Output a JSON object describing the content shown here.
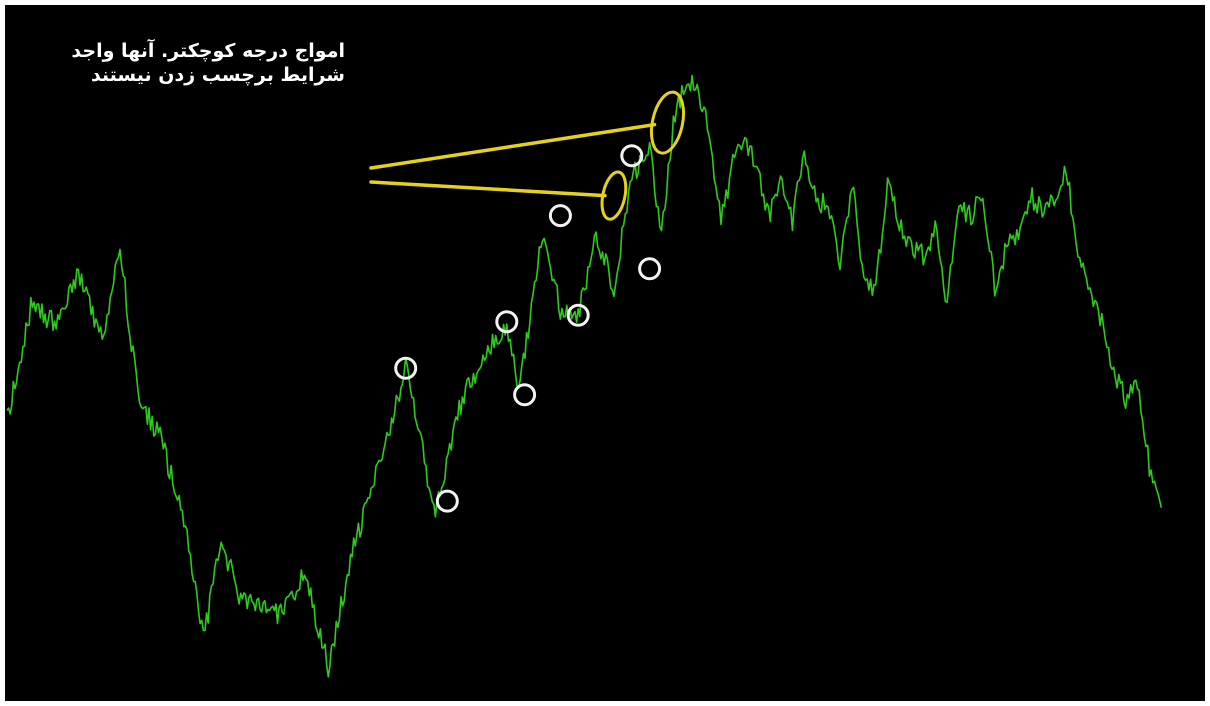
{
  "annotation": {
    "line1": "امواج درجه کوچکتر. آنها واجد",
    "line2": "شرایط برچسب زدن نیستند"
  },
  "colors": {
    "background": "#000000",
    "price_line": "#2ecc1a",
    "callout": "#e6d21c",
    "marker": "#f2f2f2"
  },
  "chart_data": {
    "type": "line",
    "title": "",
    "xlabel": "",
    "ylabel": "",
    "grid": false,
    "legend": "none",
    "xlim": [
      0,
      100
    ],
    "ylim": [
      0,
      100
    ],
    "series": [
      {
        "values": [
          [
            0,
            40
          ],
          [
            2,
            57
          ],
          [
            4,
            55
          ],
          [
            6,
            62
          ],
          [
            8,
            52
          ],
          [
            9.5,
            66
          ],
          [
            11,
            44
          ],
          [
            13,
            37
          ],
          [
            15,
            24
          ],
          [
            16.5,
            7
          ],
          [
            18,
            22
          ],
          [
            19.5,
            14
          ],
          [
            21,
            12
          ],
          [
            23,
            11
          ],
          [
            25,
            17
          ],
          [
            27,
            3
          ],
          [
            29,
            20
          ],
          [
            31,
            32
          ],
          [
            33.5,
            48
          ],
          [
            36,
            26
          ],
          [
            38,
            42
          ],
          [
            40,
            50
          ],
          [
            42,
            55
          ],
          [
            43,
            45
          ],
          [
            45,
            68
          ],
          [
            46.5,
            57
          ],
          [
            48,
            56
          ],
          [
            49.5,
            68
          ],
          [
            51,
            60
          ],
          [
            52.5,
            77
          ],
          [
            54,
            81
          ],
          [
            55,
            68
          ],
          [
            56,
            85
          ],
          [
            57,
            91
          ],
          [
            58,
            91
          ],
          [
            59,
            83
          ],
          [
            60,
            70
          ],
          [
            61,
            79
          ],
          [
            62,
            82
          ],
          [
            63,
            79
          ],
          [
            64,
            71
          ],
          [
            65,
            76
          ],
          [
            66,
            70
          ],
          [
            67,
            81
          ],
          [
            68,
            73
          ],
          [
            69,
            73
          ],
          [
            70,
            63
          ],
          [
            71,
            76
          ],
          [
            72,
            62
          ],
          [
            73,
            60
          ],
          [
            74,
            76
          ],
          [
            75,
            70
          ],
          [
            76,
            66
          ],
          [
            77,
            65
          ],
          [
            78,
            69
          ],
          [
            79,
            58
          ],
          [
            80,
            72
          ],
          [
            81,
            71
          ],
          [
            82,
            74
          ],
          [
            83,
            60
          ],
          [
            84,
            66
          ],
          [
            85,
            69
          ],
          [
            86,
            74
          ],
          [
            87,
            72
          ],
          [
            88,
            74
          ],
          [
            89,
            78
          ],
          [
            90,
            66
          ],
          [
            91,
            60
          ],
          [
            92,
            55
          ],
          [
            93,
            48
          ],
          [
            94,
            43
          ],
          [
            95,
            46
          ],
          [
            96,
            33
          ],
          [
            97,
            27
          ]
        ]
      }
    ],
    "highlighted_swings": [
      [
        33.5,
        48
      ],
      [
        37,
        28
      ],
      [
        42,
        55
      ],
      [
        43.5,
        44
      ],
      [
        46.5,
        71
      ],
      [
        48,
        56
      ],
      [
        52.5,
        80
      ],
      [
        54,
        63
      ]
    ],
    "callout_swings": [
      [
        51,
        74
      ],
      [
        55.5,
        85
      ]
    ]
  }
}
